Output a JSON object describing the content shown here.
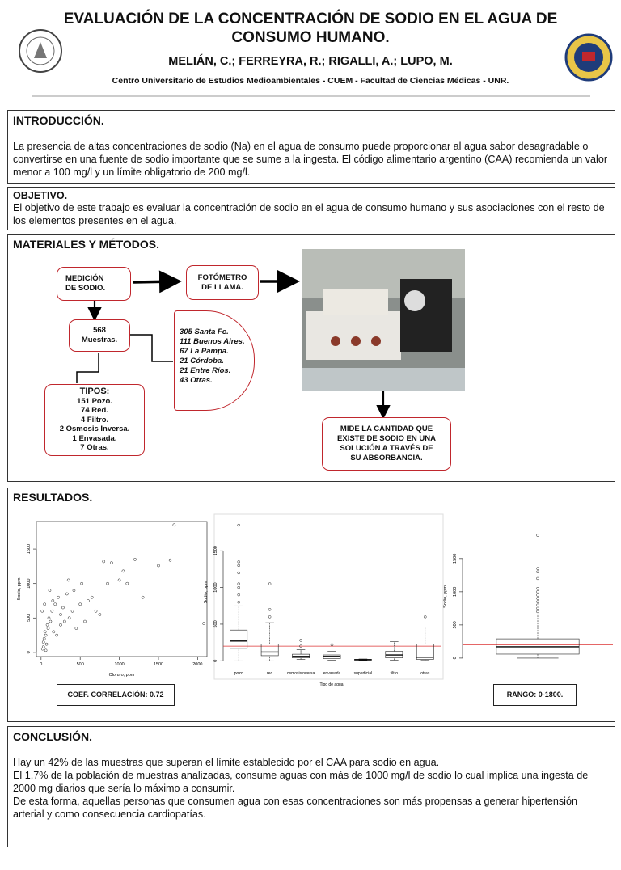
{
  "header": {
    "title": "EVALUACIÓN DE LA CONCENTRACIÓN DE SODIO EN EL AGUA DE CONSUMO HUMANO.",
    "authors": "MELIÁN, C.; FERREYRA, R.; RIGALLI, A.; LUPO, M.",
    "affiliation": "Centro Universitario de Estudios Medioambientales - CUEM - Facultad de Ciencias Médicas - UNR."
  },
  "intro": {
    "heading": "INTRODUCCIÓN.",
    "text": "La presencia de altas concentraciones de sodio (Na) en el agua de consumo puede proporcionar al agua sabor desagradable o convertirse en una fuente de sodio importante que se sume a la ingesta. El código alimentario argentino (CAA)  recomienda un valor menor a 100 mg/l y un límite obligatorio de 200 mg/l."
  },
  "objective": {
    "heading": "OBJETIVO.",
    "text": "El objetivo de este trabajo es evaluar la concentración de sodio en el agua de consumo humano y sus asociaciones con el resto de los elementos presentes en el agua."
  },
  "methods": {
    "heading": "MATERIALES Y MÉTODOS.",
    "measure": [
      "MEDICIÓN",
      "DE SODIO."
    ],
    "device": [
      "FOTÓMETRO",
      "DE LLAMA."
    ],
    "samples": [
      "568",
      "Muestras."
    ],
    "provinces": [
      "305 Santa Fe.",
      "111 Buenos Aires.",
      "67 La Pampa.",
      "21 Córdoba.",
      "21 Entre Ríos.",
      "43 Otras."
    ],
    "types": [
      "TIPOS:",
      "151 Pozo.",
      "74 Red.",
      "4 Filtro.",
      "2 Osmosis Inversa.",
      "1 Envasada.",
      "7 Otras."
    ],
    "result": "MIDE LA CANTIDAD QUE EXISTE  DE SODIO EN UNA SOLUCIÓN A TRAVÉS DE SU ABSORBANCIA."
  },
  "results": {
    "heading": "RESULTADOS.",
    "scatter": {
      "type": "scatter",
      "xlabel": "Cloruro, ppm",
      "ylabel": "Sodio, ppm",
      "xlim": [
        -60,
        2120
      ],
      "ylim": [
        -60,
        1900
      ],
      "xticks": [
        0,
        500,
        1000,
        1500,
        2000
      ],
      "yticks": [
        0,
        500,
        1000,
        1500
      ],
      "x": [
        20,
        30,
        40,
        50,
        60,
        70,
        80,
        90,
        100,
        120,
        140,
        160,
        180,
        200,
        220,
        250,
        280,
        300,
        330,
        360,
        400,
        420,
        450,
        500,
        520,
        560,
        600,
        650,
        700,
        750,
        800,
        850,
        900,
        1000,
        1050,
        1100,
        1200,
        1300,
        1500,
        1650,
        1700,
        2080,
        30,
        60,
        15,
        45,
        110,
        150,
        250,
        350
      ],
      "y": [
        50,
        150,
        200,
        300,
        250,
        120,
        400,
        350,
        500,
        450,
        600,
        300,
        700,
        250,
        800,
        550,
        650,
        450,
        850,
        500,
        600,
        900,
        350,
        700,
        1000,
        450,
        750,
        800,
        600,
        550,
        1320,
        1000,
        1300,
        1050,
        1180,
        1000,
        1350,
        800,
        1260,
        1340,
        1850,
        420,
        80,
        30,
        600,
        700,
        900,
        750,
        400,
        1050
      ]
    },
    "boxplot": {
      "type": "box",
      "xlabel": "Tipo de agua",
      "ylabel": "Sodio, ppm",
      "ylim": [
        -30,
        1900
      ],
      "yticks": [
        0,
        500,
        1000,
        1500
      ],
      "ref_line": 200,
      "categories": [
        "pozo",
        "red",
        "osmosisinversa",
        "envasada",
        "superficial",
        "filtro",
        "otras"
      ],
      "boxes": [
        {
          "min": 0,
          "q1": 170,
          "median": 270,
          "q3": 420,
          "max": 750,
          "outliers": [
            800,
            900,
            1000,
            1050,
            1200,
            1300,
            1350,
            1850
          ]
        },
        {
          "min": 0,
          "q1": 70,
          "median": 120,
          "q3": 230,
          "max": 520,
          "outliers": [
            600,
            700,
            1050
          ]
        },
        {
          "min": 20,
          "q1": 40,
          "median": 60,
          "q3": 90,
          "max": 150,
          "outliers": [
            200,
            280
          ]
        },
        {
          "min": 10,
          "q1": 30,
          "median": 60,
          "q3": 80,
          "max": 130,
          "outliers": [
            220
          ]
        },
        {
          "min": 5,
          "q1": 10,
          "median": 15,
          "q3": 20,
          "max": 25,
          "outliers": []
        },
        {
          "min": 10,
          "q1": 40,
          "median": 80,
          "q3": 130,
          "max": 260,
          "outliers": []
        },
        {
          "min": 5,
          "q1": 20,
          "median": 50,
          "q3": 230,
          "max": 460,
          "outliers": [
            600
          ]
        }
      ]
    },
    "boxplot_all": {
      "type": "box",
      "ylabel": "Sodio, ppm",
      "ylim": [
        -50,
        1900
      ],
      "yticks": [
        0,
        500,
        1000,
        1500
      ],
      "ref_line": 200,
      "boxes": [
        {
          "min": 0,
          "q1": 60,
          "median": 170,
          "q3": 290,
          "max": 660,
          "outliers": [
            700,
            750,
            800,
            850,
            900,
            950,
            1000,
            1050,
            1200,
            1300,
            1350,
            1850
          ]
        }
      ]
    },
    "correlation": "COEF. CORRELACIÓN: 0.72",
    "range": "RANGO: 0-1800."
  },
  "conclusion": {
    "heading": "CONCLUSIÓN.",
    "paragraphs": [
      "Hay un 42% de las muestras que superan el límite establecido por el CAA para sodio en agua.",
      "El 1,7% de la población de muestras analizadas, consume aguas con más de 1000 mg/l de sodio lo cual implica una ingesta de 2000 mg diarios que sería lo máximo a consumir.",
      "De esta forma, aquellas personas que consumen agua con esas concentraciones son más propensas a generar hipertensión arterial y como consecuencia cardiopatías."
    ]
  }
}
